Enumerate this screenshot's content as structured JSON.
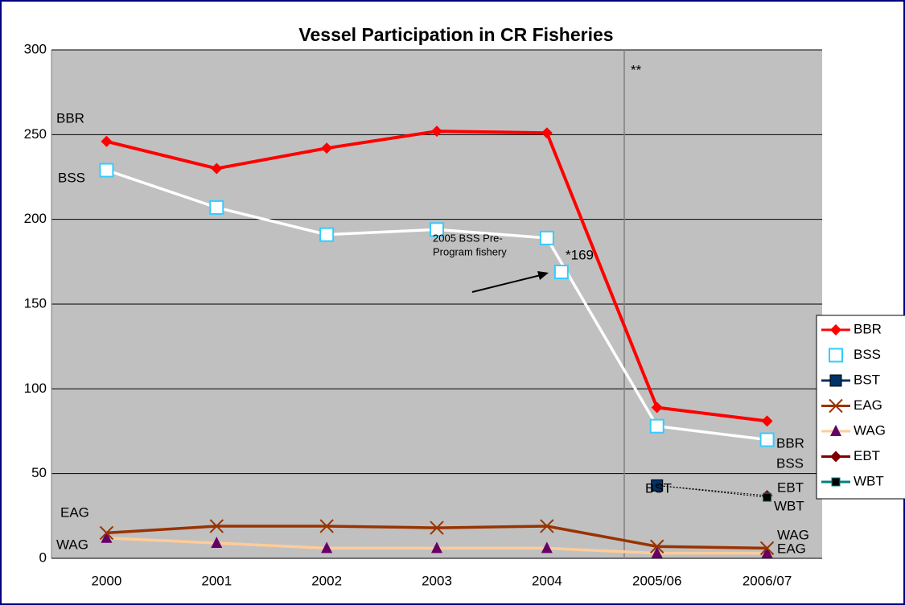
{
  "chart_data": {
    "type": "line",
    "title": "Vessel Participation in CR Fisheries",
    "categories": [
      "2000",
      "2001",
      "2002",
      "2003",
      "2004",
      "2005/06",
      "2006/07"
    ],
    "ylim": [
      0,
      300
    ],
    "yticks": [
      0,
      50,
      100,
      150,
      200,
      250,
      300
    ],
    "grid": true,
    "legend": "right",
    "series": [
      {
        "name": "BBR",
        "color": "#ff0000",
        "marker": "diamond",
        "marker_color": "#ff0000",
        "values": [
          246,
          230,
          242,
          252,
          251,
          89,
          81
        ]
      },
      {
        "name": "BSS",
        "color": "#ffffff",
        "marker": "square-open",
        "marker_color": "#33ccff",
        "values": [
          229,
          207,
          191,
          194,
          189,
          78,
          70
        ]
      },
      {
        "name": "BST",
        "color": "#003366",
        "marker": "square",
        "marker_color": "#003366",
        "values": [
          null,
          null,
          null,
          null,
          null,
          43,
          null
        ]
      },
      {
        "name": "EAG",
        "color": "#993300",
        "marker": "x",
        "marker_color": "#993300",
        "values": [
          15,
          19,
          19,
          18,
          19,
          7,
          6
        ]
      },
      {
        "name": "WAG",
        "color": "#ffcc99",
        "marker": "triangle",
        "marker_color": "#660066",
        "values": [
          12,
          9,
          6,
          6,
          6,
          3,
          3
        ]
      },
      {
        "name": "EBT",
        "color": "#800000",
        "marker": "diamond",
        "marker_color": "#800000",
        "values": [
          null,
          null,
          null,
          null,
          null,
          null,
          37
        ]
      },
      {
        "name": "WBT",
        "color": "#008080",
        "marker": "square-small",
        "marker_color": "#000000",
        "values": [
          null,
          null,
          null,
          null,
          null,
          null,
          36
        ]
      }
    ],
    "annotations": {
      "separator": "**",
      "note": [
        "2005 BSS Pre-",
        "Program fishery"
      ],
      "point": {
        "value": 169,
        "label": "*169"
      }
    }
  }
}
